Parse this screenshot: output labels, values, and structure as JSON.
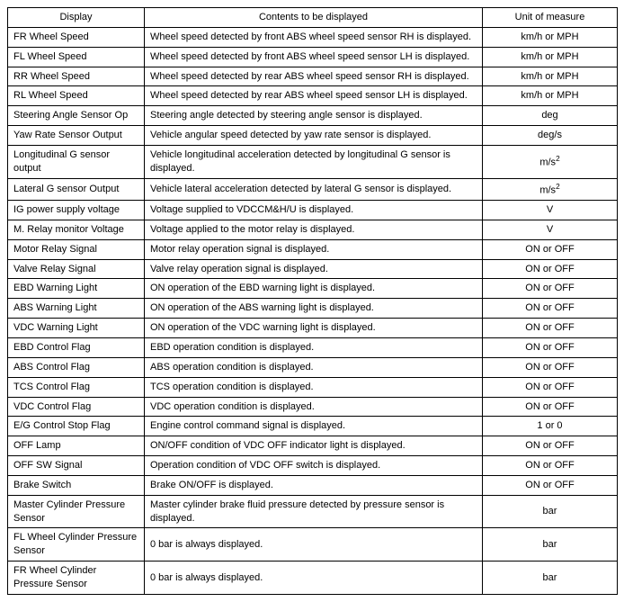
{
  "table": {
    "columns": [
      "Display",
      "Contents to be displayed",
      "Unit of measure"
    ],
    "rows": [
      {
        "display": "FR Wheel Speed",
        "contents": "Wheel speed detected by front ABS wheel speed sensor RH is displayed.",
        "unit": "km/h or MPH"
      },
      {
        "display": "FL Wheel Speed",
        "contents": "Wheel speed detected by front ABS wheel speed sensor LH is displayed.",
        "unit": "km/h or MPH"
      },
      {
        "display": "RR Wheel Speed",
        "contents": "Wheel speed detected by rear ABS wheel speed sensor RH is displayed.",
        "unit": "km/h or MPH"
      },
      {
        "display": "RL Wheel Speed",
        "contents": "Wheel speed detected by rear ABS wheel speed sensor LH is displayed.",
        "unit": "km/h or MPH"
      },
      {
        "display": "Steering Angle Sensor Op",
        "contents": "Steering angle detected by steering angle sensor is displayed.",
        "unit": "deg"
      },
      {
        "display": "Yaw Rate Sensor Output",
        "contents": "Vehicle angular speed detected by yaw rate sensor is displayed.",
        "unit": "deg/s"
      },
      {
        "display": "Longitudinal G sensor output",
        "contents": "Vehicle longitudinal acceleration detected by longitudinal G sensor is displayed.",
        "unit": "m/s²"
      },
      {
        "display": "Lateral G sensor Output",
        "contents": "Vehicle lateral acceleration detected by lateral G sensor is displayed.",
        "unit": "m/s²"
      },
      {
        "display": "IG power supply voltage",
        "contents": "Voltage supplied to VDCCM&H/U is displayed.",
        "unit": "V"
      },
      {
        "display": "M. Relay monitor Voltage",
        "contents": "Voltage applied to the motor relay is displayed.",
        "unit": "V"
      },
      {
        "display": "Motor Relay Signal",
        "contents": "Motor relay operation signal is displayed.",
        "unit": "ON or OFF"
      },
      {
        "display": "Valve Relay Signal",
        "contents": "Valve relay operation signal is displayed.",
        "unit": "ON or OFF"
      },
      {
        "display": "EBD Warning Light",
        "contents": "ON operation of the EBD warning light is displayed.",
        "unit": "ON or OFF"
      },
      {
        "display": "ABS Warning Light",
        "contents": "ON operation of the ABS warning light is displayed.",
        "unit": "ON or OFF"
      },
      {
        "display": "VDC Warning Light",
        "contents": "ON operation of the VDC warning light is displayed.",
        "unit": "ON or OFF"
      },
      {
        "display": "EBD Control Flag",
        "contents": "EBD operation condition is displayed.",
        "unit": "ON or OFF"
      },
      {
        "display": "ABS Control Flag",
        "contents": "ABS operation condition is displayed.",
        "unit": "ON or OFF"
      },
      {
        "display": "TCS Control Flag",
        "contents": "TCS operation condition is displayed.",
        "unit": "ON or OFF"
      },
      {
        "display": "VDC Control Flag",
        "contents": "VDC operation condition is displayed.",
        "unit": "ON or OFF"
      },
      {
        "display": "E/G Control Stop Flag",
        "contents": "Engine control command signal is displayed.",
        "unit": "1 or 0"
      },
      {
        "display": "OFF Lamp",
        "contents": "ON/OFF condition of VDC OFF indicator light is displayed.",
        "unit": "ON or OFF"
      },
      {
        "display": "OFF SW Signal",
        "contents": "Operation condition of VDC OFF switch is displayed.",
        "unit": "ON or OFF"
      },
      {
        "display": "Brake Switch",
        "contents": "Brake ON/OFF is displayed.",
        "unit": "ON or OFF"
      },
      {
        "display": "Master Cylinder Pressure Sensor",
        "contents": "Master cylinder brake fluid pressure detected by pressure sensor is displayed.",
        "unit": "bar"
      },
      {
        "display": "FL Wheel Cylinder Pressure Sensor",
        "contents": "0 bar is always displayed.",
        "unit": "bar"
      },
      {
        "display": "FR Wheel Cylinder Pressure Sensor",
        "contents": "0 bar is always displayed.",
        "unit": "bar"
      }
    ]
  }
}
